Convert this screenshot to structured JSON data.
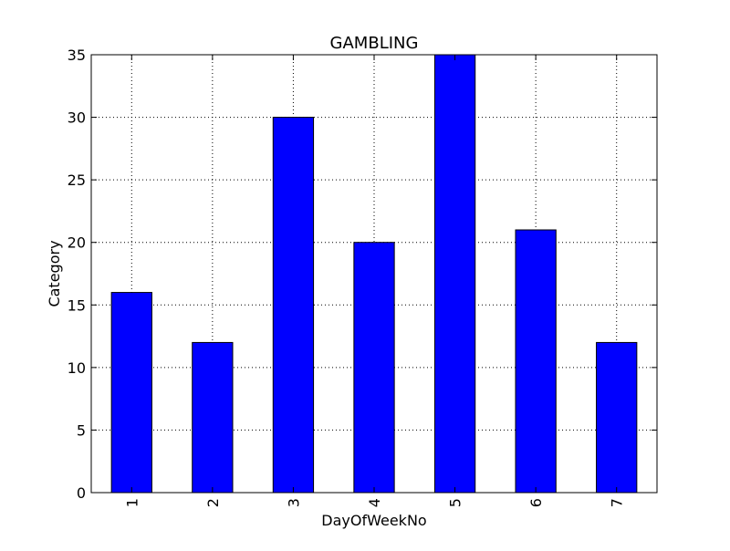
{
  "chart_data": {
    "type": "bar",
    "title": "GAMBLING",
    "xlabel": "DayOfWeekNo",
    "ylabel": "Category",
    "categories": [
      "1",
      "2",
      "3",
      "4",
      "5",
      "6",
      "7"
    ],
    "values": [
      16,
      12,
      30,
      20,
      35,
      21,
      12
    ],
    "ylim": [
      0,
      35
    ],
    "yticks": [
      0,
      5,
      10,
      15,
      20,
      25,
      30,
      35
    ],
    "grid": true,
    "bar_color": "#0000ff",
    "edge_color": "#000000"
  }
}
